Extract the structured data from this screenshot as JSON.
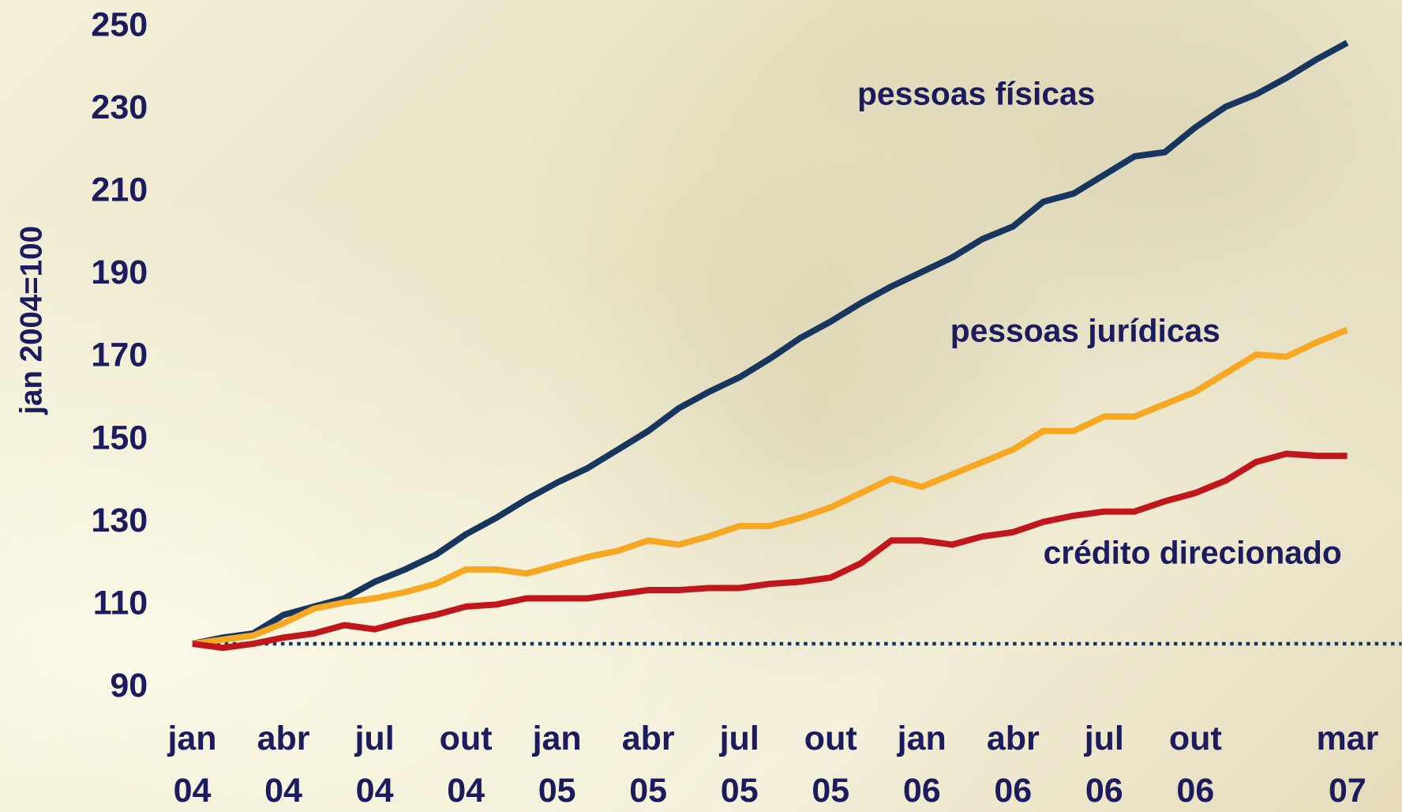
{
  "chart_data": {
    "type": "line",
    "y_label": "jan 2004=100",
    "categories": [
      "jan 04",
      null,
      null,
      "abr 04",
      null,
      null,
      "jul 04",
      null,
      null,
      "out 04",
      null,
      null,
      "jan 05",
      null,
      null,
      "abr 05",
      null,
      null,
      "jul 05",
      null,
      null,
      "out 05",
      null,
      null,
      "jan 06",
      null,
      null,
      "abr 06",
      null,
      null,
      "jul 06",
      null,
      null,
      "out 06",
      null,
      null,
      null,
      null,
      "mar 07"
    ],
    "series": [
      {
        "name": "pessoas físicas",
        "color": "#16355f",
        "values": [
          100,
          101.5,
          102.5,
          107,
          109,
          111,
          115,
          118,
          121.5,
          126.5,
          130.5,
          135,
          139,
          142.5,
          147,
          151.5,
          157,
          161,
          164.5,
          169,
          174,
          178,
          182.5,
          186.5,
          190,
          193.5,
          198,
          201,
          207,
          209,
          213.5,
          218,
          219,
          225,
          230,
          233,
          237,
          241.5,
          245.5
        ]
      },
      {
        "name": "pessoas jurídicas",
        "color": "#f7a823",
        "values": [
          100,
          101,
          102,
          105,
          108.5,
          110,
          111,
          112.5,
          114.5,
          118,
          118,
          117,
          119,
          121,
          122.5,
          125,
          124,
          126,
          128.5,
          128.5,
          130.5,
          133,
          136.5,
          140,
          138,
          141,
          144,
          147,
          151.5,
          151.5,
          155,
          155,
          158,
          161,
          165.5,
          170,
          169.5,
          173,
          176
        ]
      },
      {
        "name": "crédito direcionado",
        "color": "#c0161c",
        "values": [
          100,
          99,
          100,
          101.5,
          102.5,
          104.5,
          103.5,
          105.5,
          107,
          109,
          109.5,
          111,
          111,
          111,
          112,
          113,
          113,
          113.5,
          113.5,
          114.5,
          115,
          116,
          119.5,
          125,
          125,
          124,
          126,
          127,
          129.5,
          131,
          132,
          132,
          134.5,
          136.5,
          139.5,
          144,
          146,
          145.5,
          145.5
        ]
      }
    ],
    "reference_line": 100,
    "ylim": [
      82,
      252
    ],
    "yticks": [
      90,
      110,
      130,
      150,
      170,
      190,
      210,
      230,
      250
    ]
  }
}
